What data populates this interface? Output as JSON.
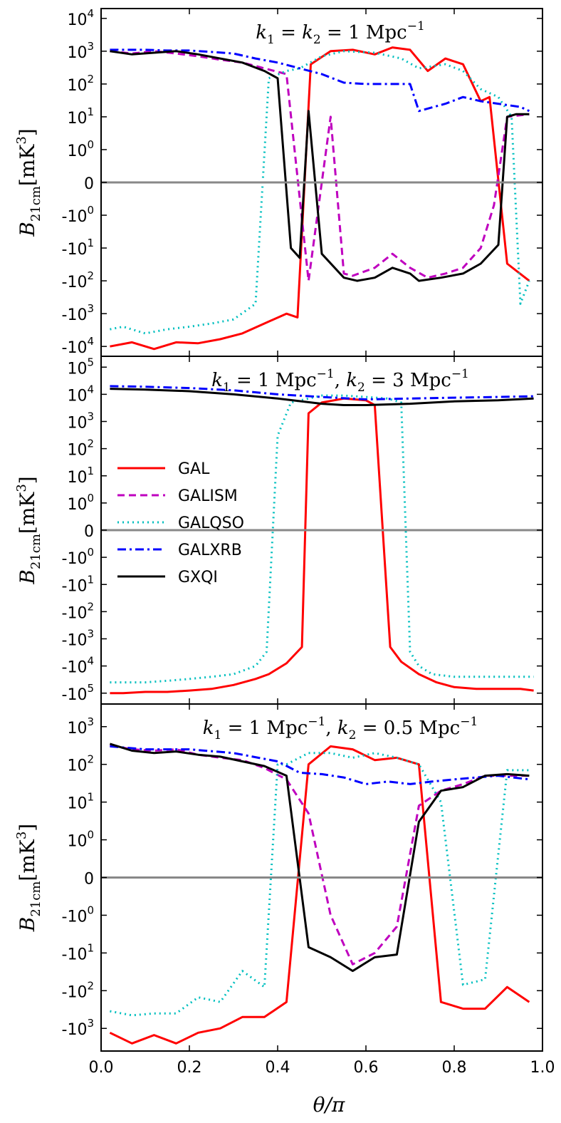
{
  "figure": {
    "xlabel": "θ/π",
    "ylabel_main": "B",
    "ylabel_sub": "21cm",
    "ylabel_unit": "[mK",
    "ylabel_unit_exp": "3",
    "ylabel_unit_close": "]",
    "x_tick_labels": [
      "0.0",
      "0.2",
      "0.4",
      "0.6",
      "0.8",
      "1.0"
    ]
  },
  "legend": {
    "entries": [
      "GAL",
      "GALISM",
      "GALQSO",
      "GALXRB",
      "GXQI"
    ]
  },
  "chart_data": [
    {
      "type": "line",
      "title": "k1 = k2 = 1 Mpc^-1",
      "title_parts": {
        "k1": "k",
        "s1": "1",
        "mid": " = ",
        "k2": "k",
        "s2": "2",
        "rest": " = 1 Mpc",
        "exp": "−1"
      },
      "xlabel": "θ/π",
      "ylabel": "B21cm [mK³]",
      "xlim": [
        0,
        1
      ],
      "yscale": "symlog",
      "ylim_exp": [
        -4.3,
        4.3
      ],
      "y_ticks": [
        {
          "exp": 4,
          "sign": "+",
          "label": "10",
          "power": "4"
        },
        {
          "exp": 3,
          "sign": "+",
          "label": "10",
          "power": "3"
        },
        {
          "exp": 2,
          "sign": "+",
          "label": "10",
          "power": "2"
        },
        {
          "exp": 1,
          "sign": "+",
          "label": "10",
          "power": "1"
        },
        {
          "exp": 0,
          "sign": "+",
          "label": "10",
          "power": "0"
        },
        {
          "exp": 0,
          "sign": "0",
          "label": "0",
          "power": ""
        },
        {
          "exp": 0,
          "sign": "-",
          "label": "-10",
          "power": "0"
        },
        {
          "exp": 1,
          "sign": "-",
          "label": "-10",
          "power": "1"
        },
        {
          "exp": 2,
          "sign": "-",
          "label": "-10",
          "power": "2"
        },
        {
          "exp": 3,
          "sign": "-",
          "label": "-10",
          "power": "3"
        },
        {
          "exp": 4,
          "sign": "-",
          "label": "-10",
          "power": "4"
        }
      ],
      "series": [
        {
          "name": "GAL",
          "color": "#ff0000",
          "dash": "solid",
          "x": [
            0.02,
            0.07,
            0.12,
            0.17,
            0.22,
            0.27,
            0.32,
            0.37,
            0.42,
            0.445,
            0.475,
            0.52,
            0.57,
            0.62,
            0.66,
            0.7,
            0.74,
            0.78,
            0.82,
            0.86,
            0.88,
            0.92,
            0.97
          ],
          "y": [
            -10000,
            -7500,
            -12000,
            -7500,
            -8000,
            -6000,
            -4000,
            -2000,
            -1000,
            -1300,
            400,
            1000,
            1100,
            800,
            1300,
            1100,
            250,
            600,
            400,
            30,
            40,
            -30,
            -100
          ]
        },
        {
          "name": "GALISM",
          "color": "#bf00bf",
          "dash": "dashed",
          "x": [
            0.02,
            0.07,
            0.12,
            0.17,
            0.22,
            0.27,
            0.32,
            0.37,
            0.42,
            0.47,
            0.52,
            0.55,
            0.57,
            0.62,
            0.66,
            0.7,
            0.74,
            0.78,
            0.82,
            0.86,
            0.89,
            0.92,
            0.97
          ],
          "y": [
            1000,
            850,
            1000,
            850,
            700,
            550,
            450,
            300,
            200,
            -100,
            10,
            -60,
            -70,
            -40,
            -15,
            -40,
            -80,
            -60,
            -40,
            -10,
            -0.5,
            10,
            12
          ]
        },
        {
          "name": "GALQSO",
          "color": "#00bfbf",
          "dash": "dotted",
          "x": [
            0.02,
            0.05,
            0.1,
            0.15,
            0.2,
            0.25,
            0.3,
            0.35,
            0.38,
            0.42,
            0.45,
            0.5,
            0.55,
            0.62,
            0.68,
            0.72,
            0.78,
            0.82,
            0.86,
            0.9,
            0.93,
            0.95,
            0.97
          ],
          "y": [
            -3000,
            -2500,
            -4000,
            -3000,
            -2500,
            -2000,
            -1500,
            -500,
            150,
            250,
            300,
            700,
            1000,
            900,
            600,
            300,
            400,
            250,
            70,
            40,
            10,
            -500,
            -100
          ]
        },
        {
          "name": "GALXRB",
          "color": "#0000ff",
          "dash": "dashdot",
          "x": [
            0.02,
            0.05,
            0.1,
            0.15,
            0.2,
            0.25,
            0.3,
            0.35,
            0.4,
            0.45,
            0.5,
            0.55,
            0.6,
            0.65,
            0.7,
            0.72,
            0.78,
            0.82,
            0.86,
            0.9,
            0.95,
            0.97
          ],
          "y": [
            1100,
            1100,
            1100,
            1050,
            1050,
            950,
            850,
            600,
            450,
            300,
            200,
            110,
            100,
            100,
            100,
            15,
            25,
            40,
            30,
            25,
            20,
            15
          ]
        },
        {
          "name": "GXQI",
          "color": "#000000",
          "dash": "solid",
          "x": [
            0.02,
            0.07,
            0.12,
            0.17,
            0.22,
            0.27,
            0.32,
            0.37,
            0.4,
            0.43,
            0.45,
            0.47,
            0.5,
            0.55,
            0.58,
            0.62,
            0.66,
            0.7,
            0.72,
            0.77,
            0.82,
            0.86,
            0.9,
            0.92,
            0.94,
            0.97
          ],
          "y": [
            1000,
            800,
            900,
            1000,
            800,
            600,
            450,
            250,
            150,
            -10,
            -20,
            15,
            -15,
            -80,
            -100,
            -80,
            -40,
            -60,
            -100,
            -80,
            -60,
            -30,
            -8,
            10,
            12,
            12
          ]
        }
      ]
    },
    {
      "type": "line",
      "title": "k1 = 1 Mpc^-1, k2 = 3 Mpc^-1",
      "title_parts": {
        "k1": "k",
        "s1": "1",
        "mid": " = 1 Mpc",
        "exp1": "−1",
        "comma": ", ",
        "k2": "k",
        "s2": "2",
        "rest": " = 3 Mpc",
        "exp": "−1"
      },
      "xlabel": "θ/π",
      "ylabel": "B21cm [mK³]",
      "xlim": [
        0,
        1
      ],
      "yscale": "symlog",
      "ylim_exp": [
        -5.4,
        5.4
      ],
      "y_ticks": [
        {
          "exp": 5,
          "sign": "+",
          "label": "10",
          "power": "5"
        },
        {
          "exp": 4,
          "sign": "+",
          "label": "10",
          "power": "4"
        },
        {
          "exp": 3,
          "sign": "+",
          "label": "10",
          "power": "3"
        },
        {
          "exp": 2,
          "sign": "+",
          "label": "10",
          "power": "2"
        },
        {
          "exp": 1,
          "sign": "+",
          "label": "10",
          "power": "1"
        },
        {
          "exp": 0,
          "sign": "+",
          "label": "10",
          "power": "0"
        },
        {
          "exp": 0,
          "sign": "0",
          "label": "0",
          "power": ""
        },
        {
          "exp": 0,
          "sign": "-",
          "label": "-10",
          "power": "0"
        },
        {
          "exp": 1,
          "sign": "-",
          "label": "-10",
          "power": "1"
        },
        {
          "exp": 2,
          "sign": "-",
          "label": "-10",
          "power": "2"
        },
        {
          "exp": 3,
          "sign": "-",
          "label": "-10",
          "power": "3"
        },
        {
          "exp": 4,
          "sign": "-",
          "label": "-10",
          "power": "4"
        },
        {
          "exp": 5,
          "sign": "-",
          "label": "-10",
          "power": "5"
        }
      ],
      "series": [
        {
          "name": "GAL",
          "color": "#ff0000",
          "dash": "solid",
          "x": [
            0.02,
            0.05,
            0.1,
            0.15,
            0.2,
            0.25,
            0.3,
            0.35,
            0.38,
            0.42,
            0.455,
            0.47,
            0.5,
            0.55,
            0.6,
            0.62,
            0.655,
            0.68,
            0.72,
            0.76,
            0.8,
            0.85,
            0.9,
            0.95,
            0.98
          ],
          "y": [
            -100000,
            -100000,
            -90000,
            -90000,
            -80000,
            -70000,
            -50000,
            -30000,
            -20000,
            -8000,
            -2000,
            2000,
            5000,
            7000,
            6000,
            4000,
            -2000,
            -7000,
            -20000,
            -40000,
            -60000,
            -70000,
            -70000,
            -70000,
            -80000
          ]
        },
        {
          "name": "GALQSO",
          "color": "#00bfbf",
          "dash": "dotted",
          "x": [
            0.02,
            0.05,
            0.1,
            0.15,
            0.2,
            0.25,
            0.3,
            0.35,
            0.375,
            0.4,
            0.43,
            0.47,
            0.5,
            0.55,
            0.6,
            0.65,
            0.68,
            0.7,
            0.72,
            0.75,
            0.8,
            0.85,
            0.9,
            0.95,
            0.98
          ],
          "y": [
            -40000,
            -40000,
            -40000,
            -35000,
            -30000,
            -25000,
            -20000,
            -10000,
            -3000,
            300,
            5000,
            7000,
            9000,
            9000,
            8000,
            7000,
            5000,
            -3000,
            -10000,
            -20000,
            -25000,
            -25000,
            -25000,
            -25000,
            -25000
          ]
        },
        {
          "name": "GALXRB",
          "color": "#0000ff",
          "dash": "dashdot",
          "x": [
            0.02,
            0.1,
            0.2,
            0.3,
            0.4,
            0.5,
            0.6,
            0.7,
            0.8,
            0.9,
            0.98
          ],
          "y": [
            20000,
            19000,
            17000,
            14000,
            10000,
            8000,
            6500,
            7000,
            7500,
            8000,
            8500
          ]
        },
        {
          "name": "GXQI",
          "color": "#000000",
          "dash": "solid",
          "x": [
            0.02,
            0.1,
            0.2,
            0.3,
            0.4,
            0.5,
            0.55,
            0.6,
            0.7,
            0.8,
            0.9,
            0.98
          ],
          "y": [
            16000,
            15000,
            13000,
            10000,
            7000,
            4500,
            4000,
            4000,
            4500,
            5500,
            6000,
            7000
          ]
        }
      ]
    },
    {
      "type": "line",
      "title": "k1 = 1 Mpc^-1, k2 = 0.5 Mpc^-1",
      "title_parts": {
        "k1": "k",
        "s1": "1",
        "mid": " = 1 Mpc",
        "exp1": "−1",
        "comma": ", ",
        "k2": "k",
        "s2": "2",
        "rest": " = 0.5 Mpc",
        "exp": "−1"
      },
      "xlabel": "θ/π",
      "ylabel": "B21cm [mK³]",
      "xlim": [
        0,
        1
      ],
      "yscale": "symlog",
      "ylim_exp": [
        -3.6,
        3.6
      ],
      "y_ticks": [
        {
          "exp": 3,
          "sign": "+",
          "label": "10",
          "power": "3"
        },
        {
          "exp": 2,
          "sign": "+",
          "label": "10",
          "power": "2"
        },
        {
          "exp": 1,
          "sign": "+",
          "label": "10",
          "power": "1"
        },
        {
          "exp": 0,
          "sign": "+",
          "label": "10",
          "power": "0"
        },
        {
          "exp": 0,
          "sign": "0",
          "label": "0",
          "power": ""
        },
        {
          "exp": 0,
          "sign": "-",
          "label": "-10",
          "power": "0"
        },
        {
          "exp": 1,
          "sign": "-",
          "label": "-10",
          "power": "1"
        },
        {
          "exp": 2,
          "sign": "-",
          "label": "-10",
          "power": "2"
        },
        {
          "exp": 3,
          "sign": "-",
          "label": "-10",
          "power": "3"
        }
      ],
      "series": [
        {
          "name": "GAL",
          "color": "#ff0000",
          "dash": "solid",
          "x": [
            0.02,
            0.07,
            0.12,
            0.17,
            0.22,
            0.27,
            0.32,
            0.37,
            0.42,
            0.47,
            0.52,
            0.57,
            0.62,
            0.67,
            0.72,
            0.77,
            0.82,
            0.87,
            0.92,
            0.97
          ],
          "y": [
            -1300,
            -2500,
            -1500,
            -2500,
            -1300,
            -1000,
            -500,
            -500,
            -200,
            100,
            300,
            250,
            130,
            150,
            100,
            -200,
            -300,
            -300,
            -80,
            -200
          ]
        },
        {
          "name": "GALISM",
          "color": "#bf00bf",
          "dash": "dashed",
          "x": [
            0.02,
            0.07,
            0.12,
            0.17,
            0.22,
            0.27,
            0.32,
            0.37,
            0.42,
            0.47,
            0.52,
            0.57,
            0.62,
            0.67,
            0.72,
            0.77,
            0.82,
            0.87,
            0.92,
            0.97
          ],
          "y": [
            320,
            250,
            230,
            250,
            180,
            150,
            130,
            80,
            40,
            5,
            -1,
            -20,
            -10,
            -2,
            8,
            20,
            30,
            50,
            50,
            50
          ]
        },
        {
          "name": "GALQSO",
          "color": "#00bfbf",
          "dash": "dotted",
          "x": [
            0.02,
            0.07,
            0.12,
            0.17,
            0.22,
            0.27,
            0.32,
            0.37,
            0.4,
            0.42,
            0.47,
            0.52,
            0.57,
            0.62,
            0.67,
            0.72,
            0.77,
            0.82,
            0.87,
            0.92,
            0.97
          ],
          "y": [
            -350,
            -450,
            -400,
            -400,
            -150,
            -200,
            -30,
            -80,
            100,
            100,
            200,
            200,
            150,
            200,
            150,
            100,
            10,
            -70,
            -50,
            70,
            70
          ]
        },
        {
          "name": "GALXRB",
          "color": "#0000ff",
          "dash": "dashdot",
          "x": [
            0.02,
            0.1,
            0.2,
            0.3,
            0.4,
            0.45,
            0.5,
            0.55,
            0.6,
            0.65,
            0.7,
            0.75,
            0.8,
            0.85,
            0.9,
            0.97
          ],
          "y": [
            300,
            250,
            250,
            200,
            120,
            60,
            55,
            45,
            30,
            35,
            30,
            35,
            40,
            45,
            50,
            40
          ]
        },
        {
          "name": "GXQI",
          "color": "#000000",
          "dash": "solid",
          "x": [
            0.02,
            0.07,
            0.12,
            0.17,
            0.22,
            0.27,
            0.32,
            0.37,
            0.42,
            0.47,
            0.52,
            0.57,
            0.62,
            0.67,
            0.72,
            0.77,
            0.82,
            0.87,
            0.92,
            0.97
          ],
          "y": [
            350,
            230,
            200,
            220,
            180,
            160,
            120,
            90,
            50,
            -7,
            -13,
            -30,
            -13,
            -11,
            3,
            20,
            25,
            50,
            55,
            50
          ]
        }
      ]
    }
  ]
}
